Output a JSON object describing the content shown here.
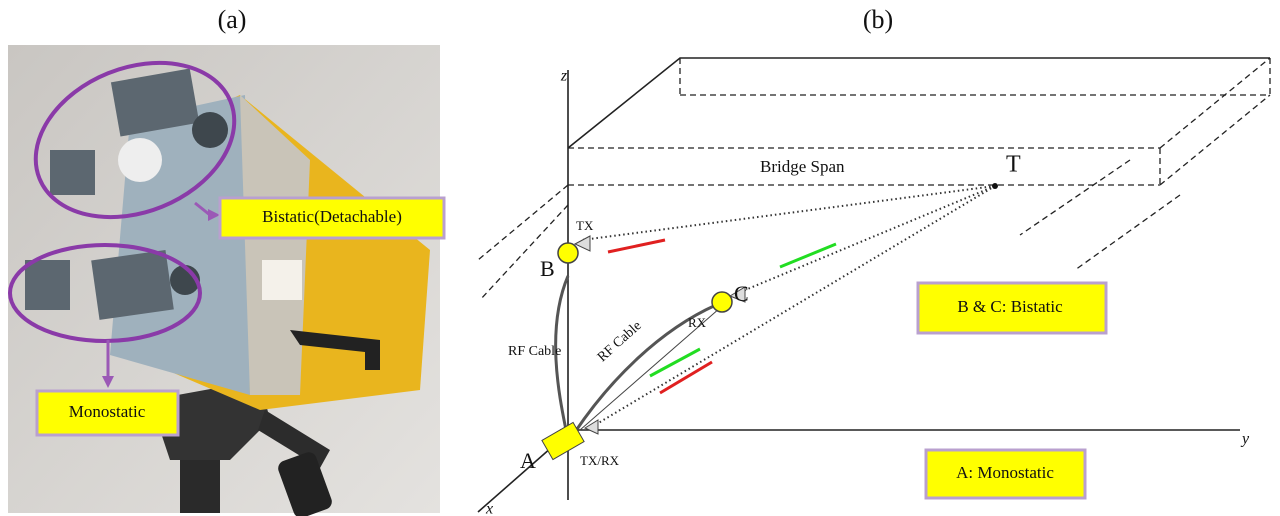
{
  "panel_a": {
    "caption": "(a)",
    "labels": {
      "bistatic": "Bistatic(Detachable)",
      "monostatic": "Monostatic"
    }
  },
  "panel_b": {
    "caption": "(b)",
    "axes": {
      "z": "z",
      "y": "y",
      "x": "x"
    },
    "bridge": "Bridge Span",
    "target": "T",
    "points": {
      "b": "B",
      "b_role": "TX",
      "c": "C",
      "c_role": "RX",
      "a": "A",
      "a_role": "TX/RX"
    },
    "cables": {
      "vertical": "RF Cable",
      "diagonal": "RF Cable"
    },
    "legend": {
      "bistatic": "B & C: Bistatic",
      "monostatic": "A: Monostatic"
    }
  }
}
